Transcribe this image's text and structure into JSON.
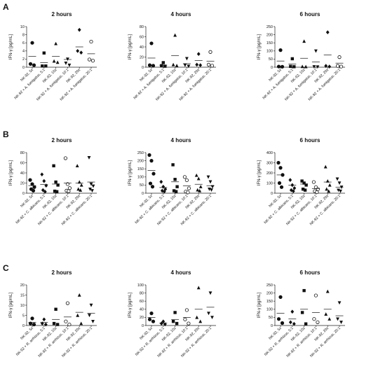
{
  "panel_labels": [
    "A",
    "B",
    "C"
  ],
  "chart_data": [
    {
      "type": "scatter",
      "panel": "A",
      "title": "2 hours",
      "ylabel": "IFN-γ [pg/mL]",
      "ylim": [
        0,
        10
      ],
      "yticks": [
        0,
        2,
        4,
        6,
        8,
        10
      ],
      "categories": [
        "NK-92, 5x",
        "NK-92 + A. fumigatus, 5:1",
        "NK-92, 10x",
        "NK-92 + A. fumigatus, 10:1",
        "NK-92, 20x",
        "NK-92 + A. fumigatus, 20:1"
      ],
      "markers": [
        "circle",
        "square",
        "triangle",
        "triangle-down",
        "diamond",
        "circle-open"
      ],
      "points": [
        [
          6,
          0.8,
          0.5
        ],
        [
          3.5,
          0.3,
          0.3
        ],
        [
          5.8,
          1.5,
          1.2
        ],
        [
          2,
          1,
          0.5
        ],
        [
          9.2,
          4,
          3.6
        ],
        [
          6.3,
          1.9,
          1.6
        ]
      ],
      "means": [
        2.7,
        1.1,
        2.7,
        1.9,
        5.0,
        3.3
      ]
    },
    {
      "type": "scatter",
      "panel": "A",
      "title": "4 hours",
      "ylabel": "IFN-γ [pg/mL]",
      "ylim": [
        0,
        80
      ],
      "yticks": [
        0,
        20,
        40,
        60,
        80
      ],
      "categories": [
        "NK-92, 5x",
        "NK-92 + A. fumigatus, 5:1",
        "NK-92, 10x",
        "NK-92 + A. fumigatus, 10:1",
        "NK-92, 20x",
        "NK-92 + A. fumigatus, 20:1"
      ],
      "markers": [
        "circle",
        "square",
        "triangle",
        "triangle-down",
        "diamond",
        "circle-open"
      ],
      "points": [
        [
          47,
          4,
          3
        ],
        [
          9,
          3,
          2
        ],
        [
          63,
          5,
          3
        ],
        [
          17,
          4,
          2
        ],
        [
          26,
          5,
          4
        ],
        [
          30,
          5,
          3
        ]
      ],
      "means": [
        18,
        4,
        23,
        7,
        13,
        12
      ]
    },
    {
      "type": "scatter",
      "panel": "A",
      "title": "6 hours",
      "ylabel": "IFN-γ [pg/mL]",
      "ylim": [
        0,
        250
      ],
      "yticks": [
        0,
        50,
        100,
        150,
        200,
        250
      ],
      "categories": [
        "NK-92, 5x",
        "NK-92 + A. fumigatus, 5:1",
        "NK-92, 10x",
        "NK-92 + A. fumigatus, 10:1",
        "NK-92, 20x",
        "NK-92 + A. fumigatus, 20:1"
      ],
      "markers": [
        "circle",
        "square",
        "triangle",
        "triangle-down",
        "diamond",
        "circle-open"
      ],
      "points": [
        [
          105,
          4,
          3
        ],
        [
          52,
          5,
          3
        ],
        [
          160,
          4,
          3
        ],
        [
          100,
          3,
          2
        ],
        [
          215,
          8,
          4
        ],
        [
          62,
          8,
          4
        ]
      ],
      "means": [
        38,
        20,
        55,
        32,
        75,
        25
      ]
    },
    {
      "type": "scatter",
      "panel": "B",
      "title": "2 hours",
      "ylabel": "IFN-γ [pg/mL]",
      "ylim": [
        0,
        80
      ],
      "yticks": [
        0,
        20,
        40,
        60,
        80
      ],
      "categories": [
        "NK-92, 5x",
        "NK-92 + C. albicans, 5:1",
        "NK-92, 10x",
        "NK-92 + C. albicans, 10:1",
        "NK-92, 20x",
        "NK-92 + C. albicans, 20:1"
      ],
      "markers": [
        "circle",
        "diamond",
        "square",
        "circle-open",
        "triangle",
        "triangle-down"
      ],
      "points": [
        [
          26,
          18,
          12,
          8,
          5
        ],
        [
          37,
          24,
          15,
          6,
          3
        ],
        [
          54,
          22,
          16,
          4,
          3
        ],
        [
          69,
          18,
          10,
          5,
          4
        ],
        [
          54,
          22,
          16,
          8,
          6
        ],
        [
          70,
          18,
          14,
          8,
          5
        ]
      ],
      "means": [
        15,
        17,
        18,
        20,
        20,
        22
      ]
    },
    {
      "type": "scatter",
      "panel": "B",
      "title": "4 hours",
      "ylabel": "IFN-γ [pg/mL]",
      "ylim": [
        0,
        250
      ],
      "yticks": [
        0,
        50,
        100,
        150,
        200,
        250
      ],
      "categories": [
        "NK-92, 5x",
        "NK-92 + C. albicans, 5:1",
        "NK-92, 10x",
        "NK-92 + C. albicans, 10:1",
        "NK-92, 20x",
        "NK-92 + C. albicans, 20:1"
      ],
      "markers": [
        "circle",
        "diamond",
        "square",
        "circle-open",
        "triangle",
        "triangle-down"
      ],
      "points": [
        [
          235,
          200,
          120,
          60,
          40
        ],
        [
          70,
          40,
          25,
          15,
          10
        ],
        [
          175,
          85,
          40,
          15,
          10
        ],
        [
          100,
          80,
          30,
          10,
          5
        ],
        [
          110,
          90,
          40,
          20,
          15
        ],
        [
          100,
          70,
          40,
          25,
          20
        ]
      ],
      "means": [
        140,
        35,
        70,
        45,
        55,
        45
      ]
    },
    {
      "type": "scatter",
      "panel": "B",
      "title": "6 hours",
      "ylabel": "IFN-γ [pg/mL]",
      "ylim": [
        0,
        400
      ],
      "yticks": [
        0,
        100,
        200,
        300,
        400
      ],
      "categories": [
        "NK-92, 5x",
        "NK-92 + C. albicans, 5:1",
        "NK-92, 10x",
        "NK-92 + C. albicans, 10:1",
        "NK-92, 20x",
        "NK-92 + C. albicans, 20:1"
      ],
      "markers": [
        "circle",
        "diamond",
        "square",
        "circle-open",
        "triangle",
        "triangle-down"
      ],
      "points": [
        [
          300,
          250,
          180,
          100,
          60
        ],
        [
          130,
          80,
          50,
          30,
          20
        ],
        [
          120,
          100,
          80,
          40,
          30
        ],
        [
          110,
          60,
          40,
          20,
          10
        ],
        [
          260,
          120,
          80,
          40,
          20
        ],
        [
          140,
          100,
          60,
          30,
          20
        ]
      ],
      "means": [
        180,
        80,
        90,
        45,
        110,
        60
      ]
    },
    {
      "type": "scatter",
      "panel": "C",
      "title": "2 hours",
      "ylabel": "IFN-γ [pg/mL]",
      "ylim": [
        0,
        20
      ],
      "yticks": [
        0,
        5,
        10,
        15,
        20
      ],
      "categories": [
        "NK-92, 5x",
        "NK-92 + R. arrhizus, 5:1",
        "NK-92, 10x",
        "NK-92 + R. arrhizus, 10:1",
        "NK-92, 20x",
        "NK-92 + R. arrhizus, 20:1"
      ],
      "markers": [
        "circle",
        "diamond",
        "square",
        "circle-open",
        "triangle",
        "triangle-down"
      ],
      "points": [
        [
          3.5,
          1,
          0.5
        ],
        [
          3,
          1,
          0.5
        ],
        [
          8,
          1,
          0.5
        ],
        [
          11,
          2,
          0.5
        ],
        [
          15,
          5,
          1
        ],
        [
          10,
          5,
          2
        ]
      ],
      "means": [
        1.5,
        1.5,
        3,
        4.2,
        6.5,
        6
      ]
    },
    {
      "type": "scatter",
      "panel": "C",
      "title": "4 hours",
      "ylabel": "IFN-γ [pg/mL]",
      "ylim": [
        0,
        100
      ],
      "yticks": [
        0,
        20,
        40,
        60,
        80,
        100
      ],
      "categories": [
        "NK-92, 5x",
        "NK-92 + R. arrhizus, 5:1",
        "NK-92, 10x",
        "NK-92 + R. arrhizus, 10:1",
        "NK-92, 20x",
        "NK-92 + R. arrhizus, 20:1"
      ],
      "markers": [
        "circle",
        "diamond",
        "square",
        "circle-open",
        "triangle",
        "triangle-down"
      ],
      "points": [
        [
          30,
          15,
          10
        ],
        [
          10,
          5,
          3
        ],
        [
          32,
          10,
          5
        ],
        [
          38,
          15,
          5
        ],
        [
          93,
          20,
          10
        ],
        [
          80,
          30,
          20
        ]
      ],
      "means": [
        20,
        6,
        15,
        20,
        40,
        45
      ]
    },
    {
      "type": "scatter",
      "panel": "C",
      "title": "6 hours",
      "ylabel": "IFN-γ [pg/mL]",
      "ylim": [
        0,
        250
      ],
      "yticks": [
        0,
        50,
        100,
        150,
        200,
        250
      ],
      "categories": [
        "NK-92, 5x",
        "NK-92 + R. arrhizus, 5:1",
        "NK-92, 10x",
        "NK-92 + R. arrhizus, 10:1",
        "NK-92, 20x",
        "NK-92 + R. arrhizus, 20:1"
      ],
      "markers": [
        "circle",
        "diamond",
        "square",
        "circle-open",
        "triangle",
        "triangle-down"
      ],
      "points": [
        [
          175,
          40,
          15
        ],
        [
          85,
          20,
          10
        ],
        [
          215,
          80,
          10
        ],
        [
          185,
          40,
          20
        ],
        [
          210,
          70,
          40
        ],
        [
          140,
          40,
          20
        ]
      ],
      "means": [
        75,
        40,
        100,
        80,
        100,
        60
      ]
    }
  ]
}
